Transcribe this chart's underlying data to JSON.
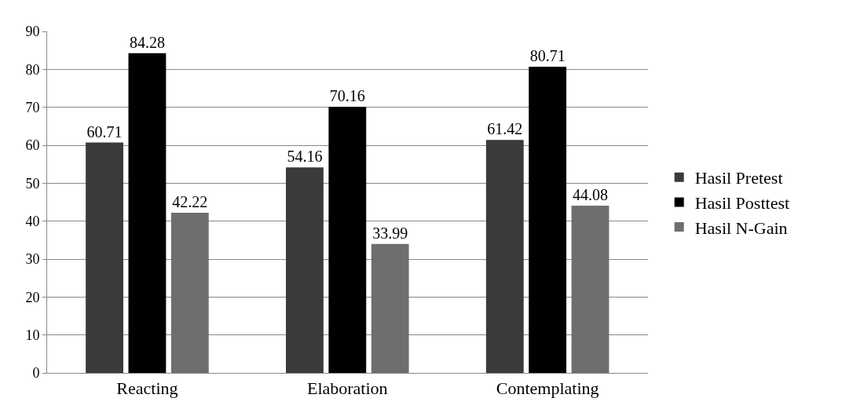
{
  "chart_data": {
    "type": "bar",
    "categories": [
      "Reacting",
      "Elaboration",
      "Contemplating"
    ],
    "series": [
      {
        "name": "Hasil Pretest",
        "color": "#3a3a3a",
        "values": [
          60.71,
          54.16,
          61.42
        ]
      },
      {
        "name": "Hasil Posttest",
        "color": "#000000",
        "values": [
          84.28,
          70.16,
          80.71
        ]
      },
      {
        "name": "Hasil N-Gain",
        "color": "#6e6e6e",
        "values": [
          42.22,
          33.99,
          44.08
        ]
      }
    ],
    "ylim": [
      0,
      90
    ],
    "yticks": [
      0,
      10,
      20,
      30,
      40,
      50,
      60,
      70,
      80,
      90
    ],
    "grid": "y",
    "legend": "right",
    "data_labels": true
  }
}
